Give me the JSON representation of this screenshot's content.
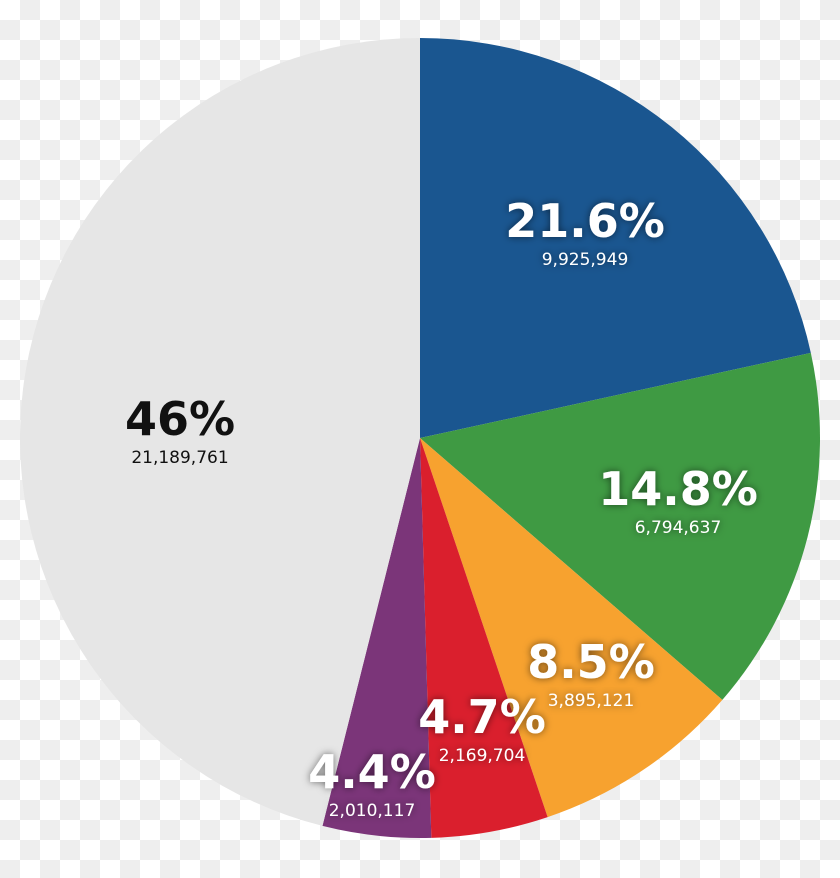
{
  "chart_data": {
    "type": "pie",
    "start": "top",
    "direction": "clockwise",
    "slices": [
      {
        "label": "21.6%",
        "value": 9925949,
        "value_label": "9,925,949",
        "percent": 21.6,
        "color": "#1a5690",
        "text_color": "light"
      },
      {
        "label": "14.8%",
        "value": 6794637,
        "value_label": "6,794,637",
        "percent": 14.8,
        "color": "#3f9a43",
        "text_color": "light"
      },
      {
        "label": "8.5%",
        "value": 3895121,
        "value_label": "3,895,121",
        "percent": 8.5,
        "color": "#f7a22f",
        "text_color": "light"
      },
      {
        "label": "4.7%",
        "value": 2169704,
        "value_label": "2,169,704",
        "percent": 4.7,
        "color": "#da1f2d",
        "text_color": "light"
      },
      {
        "label": "4.4%",
        "value": 2010117,
        "value_label": "2,010,117",
        "percent": 4.4,
        "color": "#7b3579",
        "text_color": "light"
      },
      {
        "label": "46%",
        "value": 21189761,
        "value_label": "21,189,761",
        "percent": 46,
        "color": "#e6e6e6",
        "text_color": "dark"
      }
    ]
  }
}
